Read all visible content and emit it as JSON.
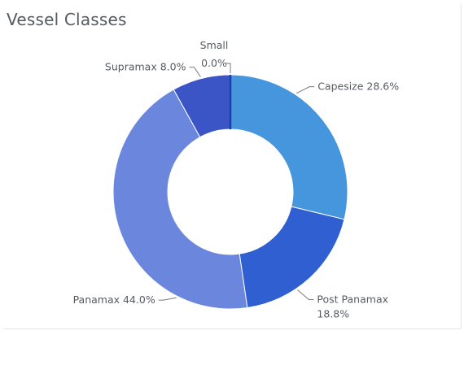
{
  "title": "Vessel Classes",
  "chart_data": {
    "type": "pie",
    "subtype": "donut",
    "title": "Vessel Classes",
    "legend": "none",
    "series": [
      {
        "name": "Capesize",
        "value": 28.6,
        "label": "Capesize 28.6%",
        "color": "#4596dc"
      },
      {
        "name": "Post Panamax",
        "value": 18.8,
        "label_line1": "Post Panamax",
        "label_line2": "18.8%",
        "color": "#2f5fd0"
      },
      {
        "name": "Panamax",
        "value": 44.0,
        "label": "Panamax 44.0%",
        "color": "#6a87dd"
      },
      {
        "name": "Supramax",
        "value": 8.0,
        "label": "Supramax 8.0%",
        "color": "#3c55c6"
      },
      {
        "name": "Small",
        "value": 0.0,
        "label_line1": "Small",
        "label_line2": "0.0%",
        "color": "#1f3ea8"
      }
    ]
  }
}
